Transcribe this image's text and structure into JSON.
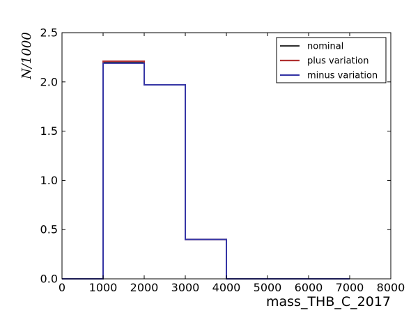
{
  "chart_data": {
    "type": "line",
    "drawstyle": "steps",
    "title": "",
    "xlabel": "mass_THB_C_2017",
    "ylabel": "N/1000",
    "xlim": [
      0,
      8000
    ],
    "ylim": [
      0,
      2.5
    ],
    "xticks": [
      0,
      1000,
      2000,
      3000,
      4000,
      5000,
      6000,
      7000,
      8000
    ],
    "yticks": [
      0.0,
      0.5,
      1.0,
      1.5,
      2.0,
      2.5
    ],
    "xtick_labels": [
      "0",
      "1000",
      "2000",
      "3000",
      "4000",
      "5000",
      "6000",
      "7000",
      "8000"
    ],
    "ytick_labels": [
      "0.0",
      "0.5",
      "1.0",
      "1.5",
      "2.0",
      "2.5"
    ],
    "grid": false,
    "legend_position": "top-right",
    "bin_edges": [
      0,
      1000,
      2000,
      3000,
      4000,
      5000,
      6000,
      7000
    ],
    "series": [
      {
        "name": "nominal",
        "color": "#333333",
        "values": [
          0.0,
          2.2,
          1.97,
          0.4,
          0.0,
          0.0,
          0.0
        ]
      },
      {
        "name": "plus variation",
        "color": "#b03030",
        "values": [
          0.0,
          2.21,
          1.97,
          0.4,
          0.0,
          0.0,
          0.0
        ]
      },
      {
        "name": "minus variation",
        "color": "#3535a5",
        "values": [
          0.0,
          2.19,
          1.97,
          0.4,
          0.0,
          0.0,
          0.0
        ]
      }
    ]
  }
}
